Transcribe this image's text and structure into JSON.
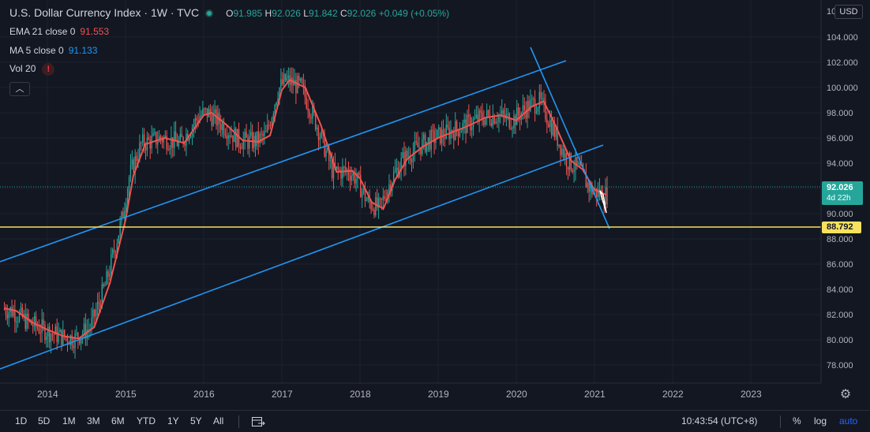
{
  "header": {
    "symbol_title": "U.S. Dollar Currency Index · 1W · TVC",
    "ohlc": {
      "o_label": "O",
      "o_value": "91.985",
      "h_label": "H",
      "h_value": "92.026",
      "l_label": "L",
      "l_value": "91.842",
      "c_label": "C",
      "c_value": "92.026",
      "change": "+0.049 (+0.05%)"
    }
  },
  "indicators": [
    {
      "label": "EMA 21 close 0",
      "value": "91.553",
      "color": "#ef5350"
    },
    {
      "label": "MA 5 close 0",
      "value": "91.133",
      "color": "#2196f3"
    },
    {
      "label": "Vol 20",
      "value": "!",
      "color": "#f23645"
    }
  ],
  "collapse_icon": "chevron-up-icon",
  "currency_button": "USD",
  "price_axis": {
    "ticks": [
      "104.000",
      "102.000",
      "100.000",
      "98.000",
      "96.000",
      "94.000",
      "92.000",
      "90.000",
      "88.000",
      "86.000",
      "84.000",
      "82.000",
      "80.000",
      "78.000"
    ],
    "current_price": "92.026",
    "countdown": "4d 22h",
    "level_price": "88.792",
    "top_cut_label": "10"
  },
  "time_axis": {
    "ticks": [
      "2014",
      "2015",
      "2016",
      "2017",
      "2018",
      "2019",
      "2020",
      "2021",
      "2022",
      "2023"
    ]
  },
  "bottom_bar": {
    "ranges": [
      "1D",
      "5D",
      "1M",
      "3M",
      "6M",
      "YTD",
      "1Y",
      "5Y",
      "All"
    ],
    "compare_icon": "calendar-range-icon",
    "time": "10:43:54 (UTC+8)",
    "percent": "%",
    "log": "log",
    "auto": "auto"
  },
  "colors": {
    "background": "#131722",
    "up": "#26a69a",
    "down": "#ef5350",
    "ema": "#ef5350",
    "trendline": "#2196f3",
    "level_line": "#f7e15e",
    "current_price_line": "#26a69a"
  },
  "chart_data": {
    "type": "line",
    "title": "U.S. Dollar Currency Index · 1W · TVC",
    "x_ticks": [
      "2014",
      "2015",
      "2016",
      "2017",
      "2018",
      "2019",
      "2020",
      "2021",
      "2022",
      "2023"
    ],
    "ylim": [
      76.5,
      105.5
    ],
    "series": [
      {
        "name": "EMA 21 close 0",
        "x": [
          2013.45,
          2013.6,
          2013.8,
          2014.0,
          2014.2,
          2014.4,
          2014.6,
          2014.8,
          2015.0,
          2015.1,
          2015.25,
          2015.5,
          2015.75,
          2016.0,
          2016.1,
          2016.3,
          2016.5,
          2016.7,
          2016.85,
          2017.0,
          2017.1,
          2017.3,
          2017.5,
          2017.7,
          2017.9,
          2018.0,
          2018.15,
          2018.3,
          2018.45,
          2018.6,
          2018.8,
          2019.0,
          2019.2,
          2019.4,
          2019.6,
          2019.8,
          2020.0,
          2020.2,
          2020.35,
          2020.5,
          2020.7,
          2020.85,
          2021.0,
          2021.15
        ],
        "values": [
          82.5,
          82.3,
          81.4,
          80.8,
          80.3,
          80.1,
          81.0,
          84.5,
          89.5,
          93.0,
          95.5,
          96.0,
          95.6,
          97.8,
          98.0,
          97.0,
          95.8,
          95.7,
          96.2,
          99.8,
          100.6,
          100.0,
          97.0,
          93.3,
          93.4,
          92.8,
          90.9,
          90.4,
          92.7,
          94.3,
          95.3,
          96.0,
          96.5,
          97.0,
          97.6,
          97.8,
          97.4,
          98.5,
          98.9,
          97.0,
          94.2,
          93.5,
          91.9,
          91.5
        ]
      }
    ],
    "annotations": [
      {
        "type": "horizontal_level",
        "value": 88.792
      },
      {
        "type": "current_price",
        "value": 92.026
      }
    ]
  }
}
